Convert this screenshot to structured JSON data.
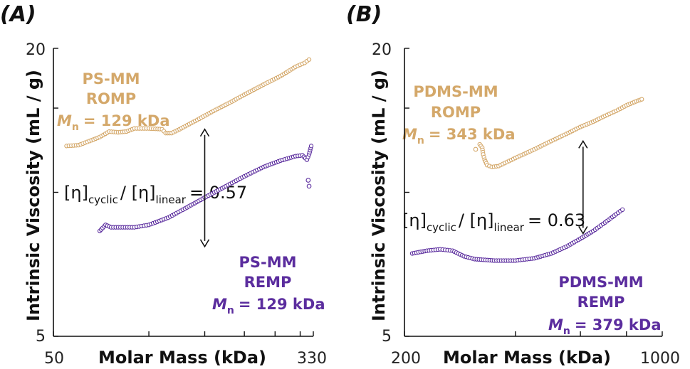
{
  "colors": {
    "romp": "#d4a86a",
    "remp": "#5b2d9e",
    "axis": "#111111"
  },
  "chart_data": [
    {
      "panel_label": "(A)",
      "type": "scatter",
      "xlabel": "Molar Mass (kDa)",
      "ylabel": "Intrinsic Viscosity (mL / g)",
      "xscale": "log",
      "yscale": "log",
      "xlim": [
        50,
        330
      ],
      "ylim": [
        5,
        20
      ],
      "x_tick_labels": [
        "50",
        "330"
      ],
      "y_tick_labels": [
        "20",
        "5"
      ],
      "ratio_annotation": {
        "prefix": "[η]",
        "sub1": "cyclic",
        "mid": "/ [η]",
        "sub2": "linear",
        "suffix": "= 0.57"
      },
      "ratio_arrow": {
        "x": 150,
        "y_top": 13.55,
        "y_bottom": 7.7
      },
      "series": [
        {
          "name": "PS-MM ROMP",
          "label_lines": [
            "PS-MM",
            "ROMP"
          ],
          "mn_text": "= 129 kDa",
          "color_key": "romp",
          "points": [
            [
              55,
              12.5
            ],
            [
              60,
              12.55
            ],
            [
              65,
              12.8
            ],
            [
              70,
              13.05
            ],
            [
              75,
              13.4
            ],
            [
              80,
              13.35
            ],
            [
              85,
              13.4
            ],
            [
              90,
              13.6
            ],
            [
              100,
              13.6
            ],
            [
              110,
              13.55
            ],
            [
              113,
              13.3
            ],
            [
              118,
              13.3
            ],
            [
              125,
              13.55
            ],
            [
              140,
              14.1
            ],
            [
              160,
              14.8
            ],
            [
              180,
              15.4
            ],
            [
              200,
              16.0
            ],
            [
              230,
              16.8
            ],
            [
              260,
              17.5
            ],
            [
              290,
              18.3
            ],
            [
              310,
              18.65
            ],
            [
              320,
              18.95
            ]
          ]
        },
        {
          "name": "PS-MM REMP",
          "label_lines": [
            "PS-MM",
            "REMP"
          ],
          "mn_text": "= 129 kDa",
          "color_key": "remp",
          "points": [
            [
              70,
              8.3
            ],
            [
              73,
              8.55
            ],
            [
              76,
              8.45
            ],
            [
              80,
              8.45
            ],
            [
              90,
              8.45
            ],
            [
              100,
              8.55
            ],
            [
              115,
              8.85
            ],
            [
              130,
              9.25
            ],
            [
              150,
              9.75
            ],
            [
              175,
              10.3
            ],
            [
              200,
              10.8
            ],
            [
              230,
              11.3
            ],
            [
              260,
              11.65
            ],
            [
              290,
              11.9
            ],
            [
              305,
              11.95
            ],
            [
              315,
              11.7
            ],
            [
              320,
              12.0
            ],
            [
              325,
              12.5
            ]
          ],
          "outliers": [
            [
              318,
              10.6
            ],
            [
              320,
              10.3
            ]
          ]
        }
      ]
    },
    {
      "panel_label": "(B)",
      "type": "scatter",
      "xlabel": "Molar Mass (kDa)",
      "ylabel": "Intrinsic Viscosity (mL / g)",
      "xscale": "log",
      "yscale": "log",
      "xlim": [
        200,
        1000
      ],
      "ylim": [
        5,
        20
      ],
      "x_tick_labels": [
        "200",
        "1000"
      ],
      "y_tick_labels": [
        "20",
        "5"
      ],
      "ratio_annotation": {
        "prefix": "[η]",
        "sub1": "cyclic",
        "mid": "/ [η]",
        "sub2": "linear",
        "suffix": "= 0.63"
      },
      "ratio_arrow": {
        "x": 610,
        "y_top": 12.8,
        "y_bottom": 8.2
      },
      "series": [
        {
          "name": "PDMS-MM ROMP",
          "label_lines": [
            "PDMS-MM",
            "ROMP"
          ],
          "mn_text": "= 343 kDa",
          "color_key": "romp",
          "points": [
            [
              320,
              12.6
            ],
            [
              325,
              12.4
            ],
            [
              327,
              12.0
            ],
            [
              330,
              11.7
            ],
            [
              335,
              11.4
            ],
            [
              345,
              11.3
            ],
            [
              360,
              11.35
            ],
            [
              400,
              11.8
            ],
            [
              450,
              12.3
            ],
            [
              500,
              12.8
            ],
            [
              550,
              13.25
            ],
            [
              600,
              13.7
            ],
            [
              650,
              14.05
            ],
            [
              700,
              14.45
            ],
            [
              750,
              14.8
            ],
            [
              800,
              15.2
            ],
            [
              850,
              15.5
            ],
            [
              880,
              15.65
            ]
          ],
          "outliers": [
            [
              312,
              12.3
            ]
          ]
        },
        {
          "name": "PDMS-MM REMP",
          "label_lines": [
            "PDMS-MM",
            "REMP"
          ],
          "mn_text": "= 379 kDa",
          "color_key": "remp",
          "points": [
            [
              210,
              7.45
            ],
            [
              230,
              7.55
            ],
            [
              250,
              7.6
            ],
            [
              270,
              7.55
            ],
            [
              290,
              7.35
            ],
            [
              310,
              7.25
            ],
            [
              350,
              7.2
            ],
            [
              400,
              7.2
            ],
            [
              450,
              7.28
            ],
            [
              500,
              7.45
            ],
            [
              550,
              7.7
            ],
            [
              600,
              8.0
            ],
            [
              650,
              8.3
            ],
            [
              700,
              8.65
            ],
            [
              750,
              9.0
            ],
            [
              780,
              9.2
            ]
          ]
        }
      ]
    }
  ]
}
